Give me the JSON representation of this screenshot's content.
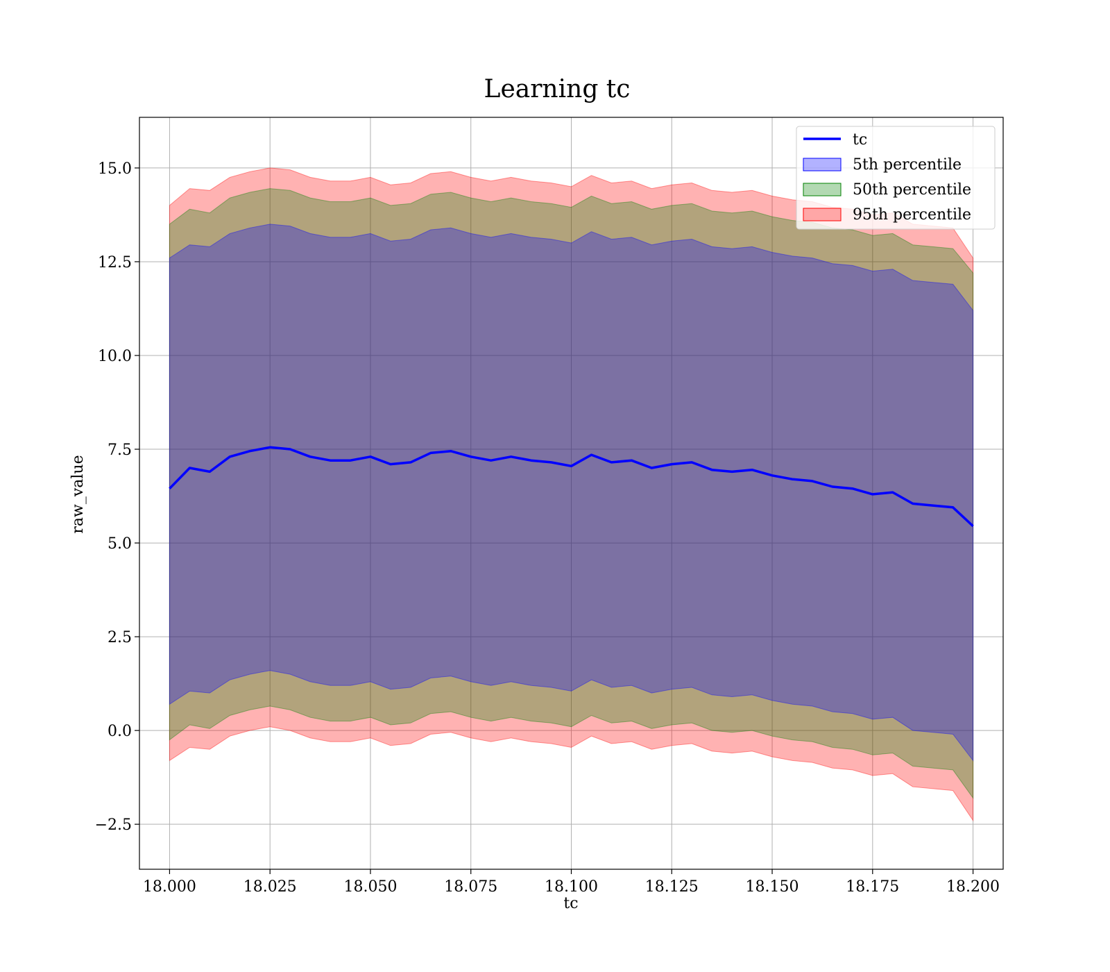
{
  "colors": {
    "line": "#0000ff",
    "band_5th": "#0000ff",
    "band_50th": "#008000",
    "band_95th": "#ff0000",
    "grid": "#b0b0b0"
  },
  "chart_data": {
    "type": "line",
    "title": "Learning tc",
    "xlabel": "tc",
    "ylabel": "raw_value",
    "xlim": [
      17.9925,
      18.2075
    ],
    "ylim": [
      -3.7,
      16.35
    ],
    "grid": true,
    "legend_position": "top-right",
    "x_ticks": [
      18.0,
      18.025,
      18.05,
      18.075,
      18.1,
      18.125,
      18.15,
      18.175,
      18.2
    ],
    "x_tick_labels": [
      "18.000",
      "18.025",
      "18.050",
      "18.075",
      "18.100",
      "18.125",
      "18.150",
      "18.175",
      "18.200"
    ],
    "y_ticks": [
      -2.5,
      0.0,
      2.5,
      5.0,
      7.5,
      10.0,
      12.5,
      15.0
    ],
    "y_tick_labels": [
      "−2.5",
      "0.0",
      "2.5",
      "5.0",
      "7.5",
      "10.0",
      "12.5",
      "15.0"
    ],
    "x": [
      18.0,
      18.005,
      18.01,
      18.015,
      18.02,
      18.025,
      18.03,
      18.035,
      18.04,
      18.045,
      18.05,
      18.055,
      18.06,
      18.065,
      18.07,
      18.075,
      18.08,
      18.085,
      18.09,
      18.095,
      18.1,
      18.105,
      18.11,
      18.115,
      18.12,
      18.125,
      18.13,
      18.135,
      18.14,
      18.145,
      18.15,
      18.155,
      18.16,
      18.165,
      18.17,
      18.175,
      18.18,
      18.185,
      18.19,
      18.195,
      18.2
    ],
    "series": [
      {
        "name": "tc",
        "kind": "line",
        "values": [
          6.45,
          7.0,
          6.9,
          7.3,
          7.45,
          7.55,
          7.5,
          7.3,
          7.2,
          7.2,
          7.3,
          7.1,
          7.15,
          7.4,
          7.45,
          7.3,
          7.2,
          7.3,
          7.2,
          7.15,
          7.05,
          7.35,
          7.15,
          7.2,
          7.0,
          7.1,
          7.15,
          6.95,
          6.9,
          6.95,
          6.8,
          6.7,
          6.65,
          6.5,
          6.45,
          6.3,
          6.35,
          6.05,
          6.0,
          5.95,
          5.45
        ]
      },
      {
        "name": "5th percentile",
        "kind": "band",
        "lower": [
          0.7,
          1.05,
          1.0,
          1.35,
          1.5,
          1.6,
          1.5,
          1.3,
          1.2,
          1.2,
          1.3,
          1.1,
          1.15,
          1.4,
          1.45,
          1.3,
          1.2,
          1.3,
          1.2,
          1.15,
          1.05,
          1.35,
          1.15,
          1.2,
          1.0,
          1.1,
          1.15,
          0.95,
          0.9,
          0.95,
          0.8,
          0.7,
          0.65,
          0.5,
          0.45,
          0.3,
          0.35,
          0.0,
          -0.05,
          -0.1,
          -0.8
        ],
        "upper": [
          12.6,
          12.95,
          12.9,
          13.25,
          13.4,
          13.5,
          13.45,
          13.25,
          13.15,
          13.15,
          13.25,
          13.05,
          13.1,
          13.35,
          13.4,
          13.25,
          13.15,
          13.25,
          13.15,
          13.1,
          13.0,
          13.3,
          13.1,
          13.15,
          12.95,
          13.05,
          13.1,
          12.9,
          12.85,
          12.9,
          12.75,
          12.65,
          12.6,
          12.45,
          12.4,
          12.25,
          12.3,
          12.0,
          11.95,
          11.9,
          11.2
        ]
      },
      {
        "name": "50th percentile",
        "kind": "band",
        "lower": [
          -0.25,
          0.15,
          0.05,
          0.4,
          0.55,
          0.65,
          0.55,
          0.35,
          0.25,
          0.25,
          0.35,
          0.15,
          0.2,
          0.45,
          0.5,
          0.35,
          0.25,
          0.35,
          0.25,
          0.2,
          0.1,
          0.4,
          0.2,
          0.25,
          0.05,
          0.15,
          0.2,
          0.0,
          -0.05,
          0.0,
          -0.15,
          -0.25,
          -0.3,
          -0.45,
          -0.5,
          -0.65,
          -0.6,
          -0.95,
          -1.0,
          -1.05,
          -1.8
        ],
        "upper": [
          13.5,
          13.9,
          13.8,
          14.2,
          14.35,
          14.45,
          14.4,
          14.2,
          14.1,
          14.1,
          14.2,
          14.0,
          14.05,
          14.3,
          14.35,
          14.2,
          14.1,
          14.2,
          14.1,
          14.05,
          13.95,
          14.25,
          14.05,
          14.1,
          13.9,
          14.0,
          14.05,
          13.85,
          13.8,
          13.85,
          13.7,
          13.6,
          13.55,
          13.4,
          13.35,
          13.2,
          13.25,
          12.95,
          12.9,
          12.85,
          12.2
        ]
      },
      {
        "name": "95th percentile",
        "kind": "band",
        "lower": [
          -0.8,
          -0.45,
          -0.5,
          -0.15,
          0.0,
          0.1,
          0.0,
          -0.2,
          -0.3,
          -0.3,
          -0.2,
          -0.4,
          -0.35,
          -0.1,
          -0.05,
          -0.2,
          -0.3,
          -0.2,
          -0.3,
          -0.35,
          -0.45,
          -0.15,
          -0.35,
          -0.3,
          -0.5,
          -0.4,
          -0.35,
          -0.55,
          -0.6,
          -0.55,
          -0.7,
          -0.8,
          -0.85,
          -1.0,
          -1.05,
          -1.2,
          -1.15,
          -1.5,
          -1.55,
          -1.6,
          -2.4
        ],
        "upper": [
          14.0,
          14.45,
          14.4,
          14.75,
          14.9,
          15.0,
          14.95,
          14.75,
          14.65,
          14.65,
          14.75,
          14.55,
          14.6,
          14.85,
          14.9,
          14.75,
          14.65,
          14.75,
          14.65,
          14.6,
          14.5,
          14.8,
          14.6,
          14.65,
          14.45,
          14.55,
          14.6,
          14.4,
          14.35,
          14.4,
          14.25,
          14.15,
          14.1,
          13.95,
          13.9,
          13.75,
          13.8,
          13.5,
          13.45,
          13.4,
          12.6
        ]
      }
    ],
    "legend": [
      "tc",
      "5th percentile",
      "50th percentile",
      "95th percentile"
    ]
  }
}
